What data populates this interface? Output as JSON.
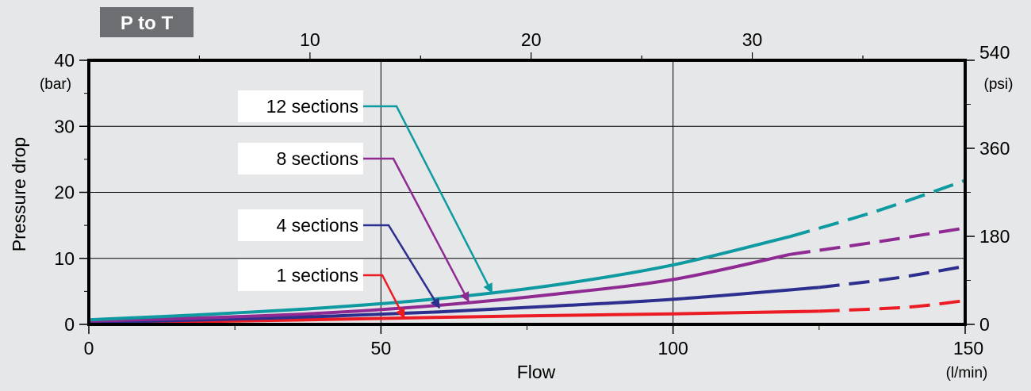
{
  "title_badge": "P to T",
  "chart_data": {
    "type": "line",
    "title": "P to T",
    "xlabel": "Flow",
    "xunit": "(l/min)",
    "ylabel": "Pressure drop",
    "yunit": "(bar)",
    "y2unit": "(psi)",
    "xlim": [
      0,
      150
    ],
    "ylim": [
      0,
      40
    ],
    "x_ticks": [
      0,
      50,
      100,
      150
    ],
    "y_ticks": [
      0,
      10,
      20,
      30,
      40
    ],
    "top_axis_ticks": [
      10,
      20,
      30
    ],
    "right_axis_ticks": [
      0,
      180,
      360,
      540
    ],
    "grid": true,
    "series": [
      {
        "name": "12 sections",
        "color": "#0f9aa1",
        "solid_x": [
          0,
          20,
          40,
          60,
          80,
          100,
          120
        ],
        "solid_y": [
          0.7,
          1.5,
          2.5,
          3.9,
          6.0,
          9.0,
          13.3
        ],
        "dashed_x": [
          120,
          135,
          150
        ],
        "dashed_y": [
          13.3,
          17.2,
          21.8
        ]
      },
      {
        "name": "8 sections",
        "color": "#8e2a92",
        "solid_x": [
          0,
          20,
          40,
          60,
          80,
          100,
          120
        ],
        "solid_y": [
          0.5,
          1.0,
          1.7,
          2.9,
          4.6,
          6.8,
          10.6
        ],
        "dashed_x": [
          120,
          135,
          150
        ],
        "dashed_y": [
          10.6,
          12.5,
          14.6
        ]
      },
      {
        "name": "4 sections",
        "color": "#2d2f8e",
        "solid_x": [
          0,
          20,
          40,
          60,
          80,
          100,
          125
        ],
        "solid_y": [
          0.3,
          0.7,
          1.2,
          1.9,
          2.8,
          3.8,
          5.6
        ],
        "dashed_x": [
          125,
          138,
          150
        ],
        "dashed_y": [
          5.6,
          7.0,
          8.8
        ]
      },
      {
        "name": "1 sections",
        "color": "#ec1c24",
        "solid_x": [
          0,
          25,
          50,
          75,
          100,
          125
        ],
        "solid_y": [
          0.2,
          0.5,
          0.9,
          1.3,
          1.6,
          2.0
        ],
        "dashed_x": [
          125,
          140,
          150
        ],
        "dashed_y": [
          2.0,
          2.6,
          3.6
        ]
      }
    ],
    "annotations": [
      {
        "label": "12 sections",
        "series": 0,
        "arrow_to_x": 69,
        "arrow_to_y": 4.8
      },
      {
        "label": "8 sections",
        "series": 1,
        "arrow_to_x": 65,
        "arrow_to_y": 3.5
      },
      {
        "label": "4 sections",
        "series": 2,
        "arrow_to_x": 60,
        "arrow_to_y": 2.5
      },
      {
        "label": "1 sections",
        "series": 3,
        "arrow_to_x": 54,
        "arrow_to_y": 1.0
      }
    ]
  }
}
